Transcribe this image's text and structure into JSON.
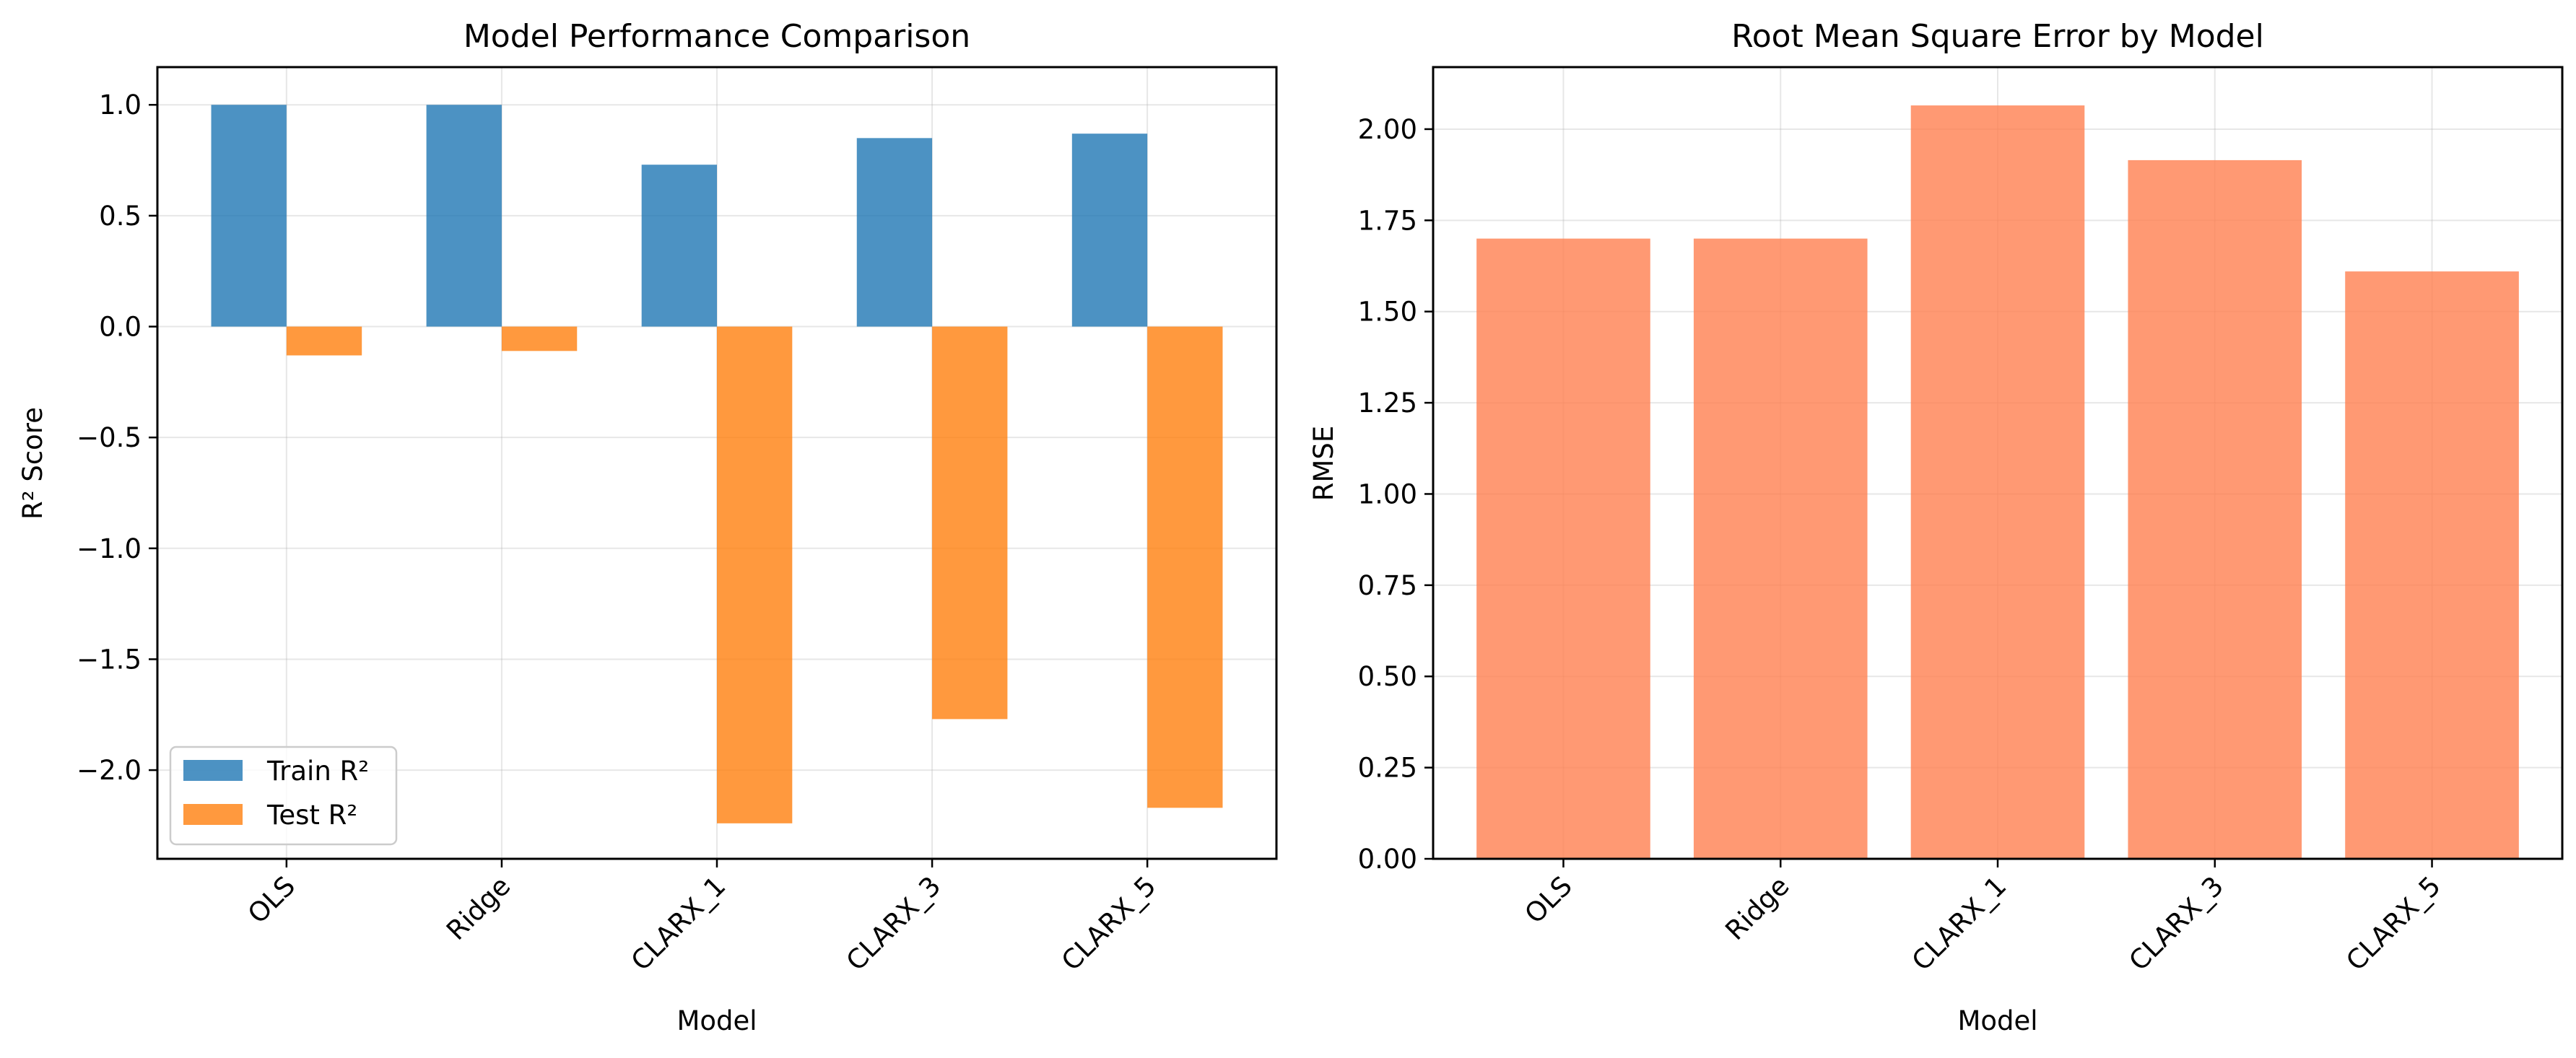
{
  "chart_data": [
    {
      "type": "bar",
      "title": "Model Performance Comparison",
      "xlabel": "Model",
      "ylabel": "R² Score",
      "categories": [
        "OLS",
        "Ridge",
        "CLARX_1",
        "CLARX_3",
        "CLARX_5"
      ],
      "series": [
        {
          "name": "Train R²",
          "color": "#1f77b4",
          "values": [
            1.0,
            1.0,
            0.73,
            0.85,
            0.87
          ]
        },
        {
          "name": "Test R²",
          "color": "#ff7f0e",
          "values": [
            -0.13,
            -0.11,
            -2.24,
            -1.77,
            -2.17
          ]
        }
      ],
      "ylim": [
        -2.4,
        1.17
      ],
      "yticks": [
        1.0,
        0.5,
        0.0,
        -0.5,
        -1.0,
        -1.5,
        -2.0
      ],
      "ytick_labels": [
        "1.0",
        "0.5",
        "0.0",
        "−0.5",
        "−1.0",
        "−1.5",
        "−2.0"
      ],
      "grid": true,
      "legend": "lower-left",
      "bar_alpha": 0.8
    },
    {
      "type": "bar",
      "title": "Root Mean Square Error by Model",
      "xlabel": "Model",
      "ylabel": "RMSE",
      "categories": [
        "OLS",
        "Ridge",
        "CLARX_1",
        "CLARX_3",
        "CLARX_5"
      ],
      "series": [
        {
          "color": "#ff7f50",
          "values": [
            1.7,
            1.7,
            2.065,
            1.915,
            1.61
          ]
        }
      ],
      "ylim": [
        0,
        2.17
      ],
      "yticks": [
        0.0,
        0.25,
        0.5,
        0.75,
        1.0,
        1.25,
        1.5,
        1.75,
        2.0
      ],
      "ytick_labels": [
        "0.00",
        "0.25",
        "0.50",
        "0.75",
        "1.00",
        "1.25",
        "1.50",
        "1.75",
        "2.00"
      ],
      "grid": true,
      "bar_alpha": 0.8
    }
  ]
}
